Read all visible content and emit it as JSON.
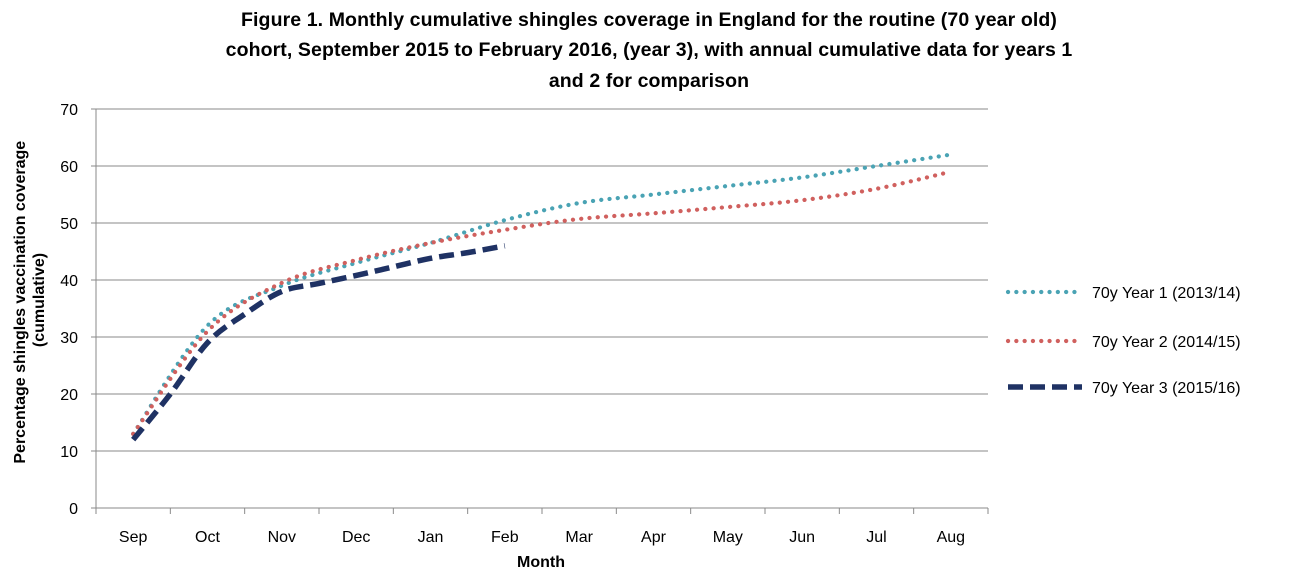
{
  "chart_data": {
    "type": "line",
    "title_lines": [
      "Figure 1. Monthly cumulative shingles coverage in England  for the routine (70 year old)",
      "cohort, September 2015 to February 2016, (year 3), with annual cumulative data for years 1",
      "and 2 for comparison"
    ],
    "xlabel": "Month",
    "ylabel": "Percentage shingles vaccination coverage (cumulative)",
    "categories": [
      "Sep",
      "Oct",
      "Nov",
      "Dec",
      "Jan",
      "Feb",
      "Mar",
      "Apr",
      "May",
      "Jun",
      "Jul",
      "Aug"
    ],
    "ylim": [
      0,
      70
    ],
    "yticks": [
      0,
      10,
      20,
      30,
      40,
      50,
      60,
      70
    ],
    "grid": "horizontal",
    "legend_position": "right",
    "series": [
      {
        "name": "70y Year 1 (2013/14)",
        "color": "#4aa3b4",
        "style": "dotted",
        "x": [
          0,
          1,
          2,
          3,
          4,
          5,
          6,
          7,
          8,
          9,
          10,
          11
        ],
        "values": [
          13,
          32,
          39,
          43,
          46.5,
          50.5,
          53.5,
          55,
          56.5,
          58,
          60,
          62
        ]
      },
      {
        "name": "70y Year 2 (2014/15)",
        "color": "#d0605e",
        "style": "dotted",
        "x": [
          0,
          1,
          2,
          3,
          4,
          5,
          6,
          7,
          8,
          9,
          10,
          11
        ],
        "values": [
          13,
          31,
          39.5,
          43.5,
          46.5,
          48.8,
          50.7,
          51.7,
          52.8,
          54,
          56,
          59
        ]
      },
      {
        "name": "70y Year 3 (2015/16)",
        "color": "#1f3264",
        "style": "dashed",
        "x": [
          0,
          0.5,
          1,
          1.5,
          2,
          2.5,
          3,
          3.5,
          4,
          4.5,
          5
        ],
        "values": [
          12,
          20,
          29,
          34,
          38,
          39.4,
          40.8,
          42.3,
          43.8,
          44.8,
          46
        ]
      }
    ]
  }
}
